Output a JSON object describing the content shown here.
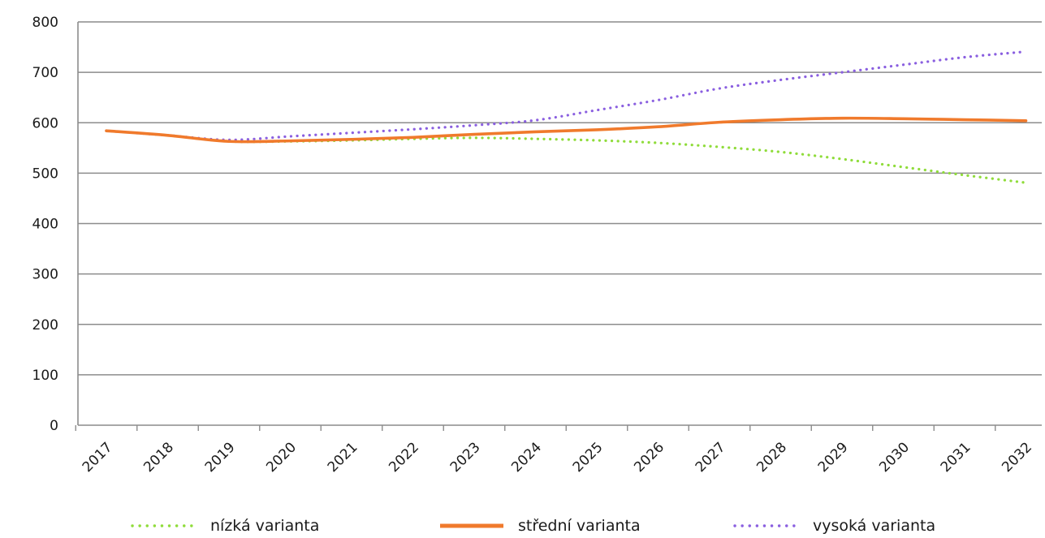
{
  "chart_data": {
    "type": "line",
    "title": "",
    "xlabel": "",
    "ylabel": "",
    "ylim": [
      0,
      800
    ],
    "yticks": [
      0,
      100,
      200,
      300,
      400,
      500,
      600,
      700,
      800
    ],
    "categories": [
      "2017",
      "2018",
      "2019",
      "2020",
      "2021",
      "2022",
      "2023",
      "2024",
      "2025",
      "2026",
      "2027",
      "2028",
      "2029",
      "2030",
      "2031",
      "2032"
    ],
    "grid": "horizontal",
    "legend_position": "bottom",
    "series": [
      {
        "name": "nízká varianta",
        "color": "#8fdc3a",
        "style": "dotted",
        "values": [
          584,
          575,
          563,
          563,
          565,
          568,
          570,
          568,
          565,
          560,
          552,
          542,
          528,
          512,
          496,
          481
        ]
      },
      {
        "name": "střední varianta",
        "color": "#f07a2c",
        "style": "solid",
        "values": [
          584,
          575,
          563,
          564,
          567,
          571,
          577,
          582,
          586,
          592,
          601,
          606,
          609,
          608,
          606,
          604
        ]
      },
      {
        "name": "vysoká varianta",
        "color": "#8a5fe0",
        "style": "dotted",
        "values": [
          584,
          575,
          566,
          573,
          580,
          587,
          595,
          605,
          625,
          645,
          668,
          685,
          700,
          715,
          730,
          741
        ]
      }
    ]
  }
}
